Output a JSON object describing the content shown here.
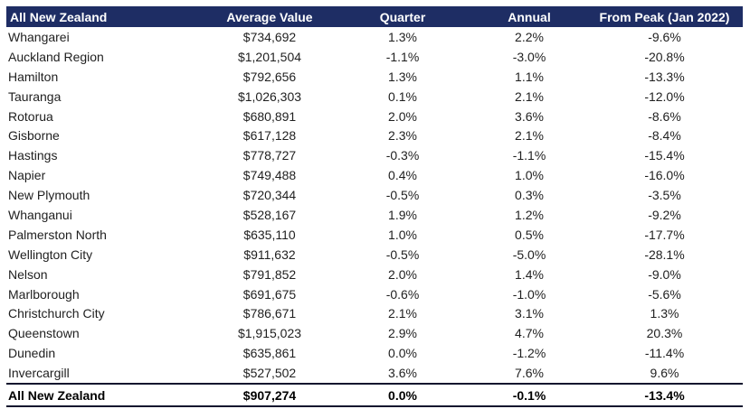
{
  "chart_data": {
    "type": "table",
    "title": "All New Zealand",
    "columns": [
      "All New Zealand",
      "Average Value",
      "Quarter",
      "Annual",
      "From Peak (Jan 2022)"
    ],
    "rows": [
      [
        "Whangarei",
        "$734,692",
        "1.3%",
        "2.2%",
        "-9.6%"
      ],
      [
        "Auckland Region",
        "$1,201,504",
        "-1.1%",
        "-3.0%",
        "-20.8%"
      ],
      [
        "Hamilton",
        "$792,656",
        "1.3%",
        "1.1%",
        "-13.3%"
      ],
      [
        "Tauranga",
        "$1,026,303",
        "0.1%",
        "2.1%",
        "-12.0%"
      ],
      [
        "Rotorua",
        "$680,891",
        "2.0%",
        "3.6%",
        "-8.6%"
      ],
      [
        "Gisborne",
        "$617,128",
        "2.3%",
        "2.1%",
        "-8.4%"
      ],
      [
        "Hastings",
        "$778,727",
        "-0.3%",
        "-1.1%",
        "-15.4%"
      ],
      [
        "Napier",
        "$749,488",
        "0.4%",
        "1.0%",
        "-16.0%"
      ],
      [
        "New Plymouth",
        "$720,344",
        "-0.5%",
        "0.3%",
        "-3.5%"
      ],
      [
        "Whanganui",
        "$528,167",
        "1.9%",
        "1.2%",
        "-9.2%"
      ],
      [
        "Palmerston North",
        "$635,110",
        "1.0%",
        "0.5%",
        "-17.7%"
      ],
      [
        "Wellington City",
        "$911,632",
        "-0.5%",
        "-5.0%",
        "-28.1%"
      ],
      [
        "Nelson",
        "$791,852",
        "2.0%",
        "1.4%",
        "-9.0%"
      ],
      [
        "Marlborough",
        "$691,675",
        "-0.6%",
        "-1.0%",
        "-5.6%"
      ],
      [
        "Christchurch City",
        "$786,671",
        "2.1%",
        "3.1%",
        "1.3%"
      ],
      [
        "Queenstown",
        "$1,915,023",
        "2.9%",
        "4.7%",
        "20.3%"
      ],
      [
        "Dunedin",
        "$635,861",
        "0.0%",
        "-1.2%",
        "-11.4%"
      ],
      [
        "Invercargill",
        "$527,502",
        "3.6%",
        "7.6%",
        "9.6%"
      ]
    ],
    "footer": [
      "All New Zealand",
      "$907,274",
      "0.0%",
      "-0.1%",
      "-13.4%"
    ],
    "colors": {
      "header_bg": "#1E2D64",
      "header_text": "#FFFFFF",
      "body_text": "#1F1F1F",
      "border": "#10162E"
    }
  }
}
